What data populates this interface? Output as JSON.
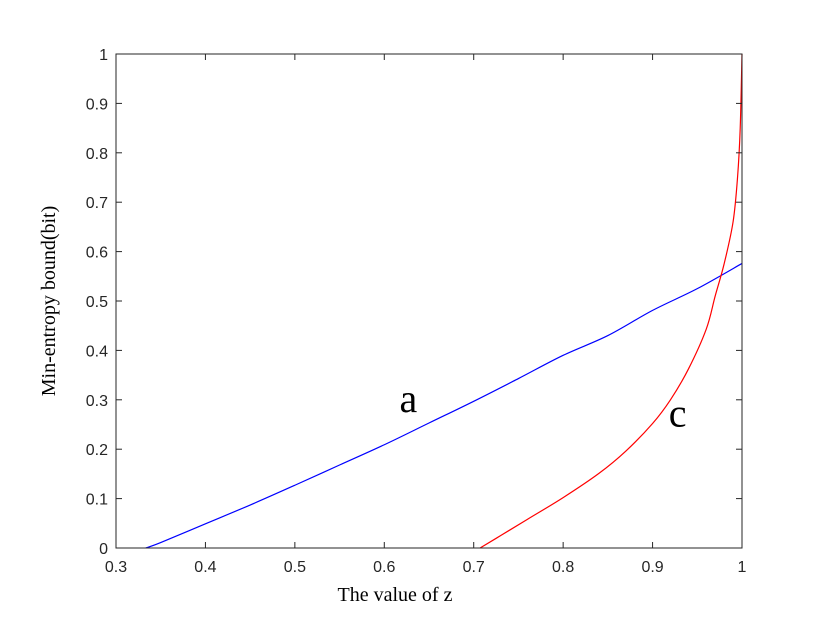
{
  "chart_data": {
    "type": "line",
    "title": "",
    "xlabel": "The value of z",
    "ylabel": "Min-entropy bound(bit)",
    "xlim": [
      0.3,
      1
    ],
    "ylim": [
      0,
      1
    ],
    "xticks": [
      0.3,
      0.4,
      0.5,
      0.6,
      0.7,
      0.8,
      0.9,
      1
    ],
    "yticks": [
      0,
      0.1,
      0.2,
      0.3,
      0.4,
      0.5,
      0.6,
      0.7,
      0.8,
      0.9,
      1
    ],
    "xtick_labels": [
      "0.3",
      "0.4",
      "0.5",
      "0.6",
      "0.7",
      "0.8",
      "0.9",
      "1"
    ],
    "ytick_labels": [
      "0",
      "0.1",
      "0.2",
      "0.3",
      "0.4",
      "0.5",
      "0.6",
      "0.7",
      "0.8",
      "0.9",
      "1"
    ],
    "grid": false,
    "series": [
      {
        "label": "a",
        "color": "#0000ff",
        "x": [
          0.3333,
          0.35,
          0.4,
          0.45,
          0.5,
          0.55,
          0.6,
          0.65,
          0.7,
          0.75,
          0.8,
          0.85,
          0.9,
          0.95,
          1.0
        ],
        "y": [
          0.0,
          0.011,
          0.049,
          0.087,
          0.127,
          0.168,
          0.209,
          0.253,
          0.297,
          0.343,
          0.39,
          0.43,
          0.481,
          0.525,
          0.576
        ]
      },
      {
        "label": "c",
        "color": "#ff0000",
        "x": [
          0.7071,
          0.73,
          0.76,
          0.8,
          0.84,
          0.87,
          0.9,
          0.92,
          0.94,
          0.96,
          0.97,
          0.98,
          0.99,
          0.995,
          0.998,
          1.0
        ],
        "y": [
          0.0,
          0.025,
          0.058,
          0.102,
          0.151,
          0.196,
          0.252,
          0.3,
          0.362,
          0.443,
          0.51,
          0.575,
          0.66,
          0.75,
          0.85,
          1.0
        ]
      }
    ],
    "annotations": [
      {
        "text": "a",
        "x": 0.627,
        "y": 0.3
      },
      {
        "text": "c",
        "x": 0.928,
        "y": 0.27
      }
    ]
  }
}
